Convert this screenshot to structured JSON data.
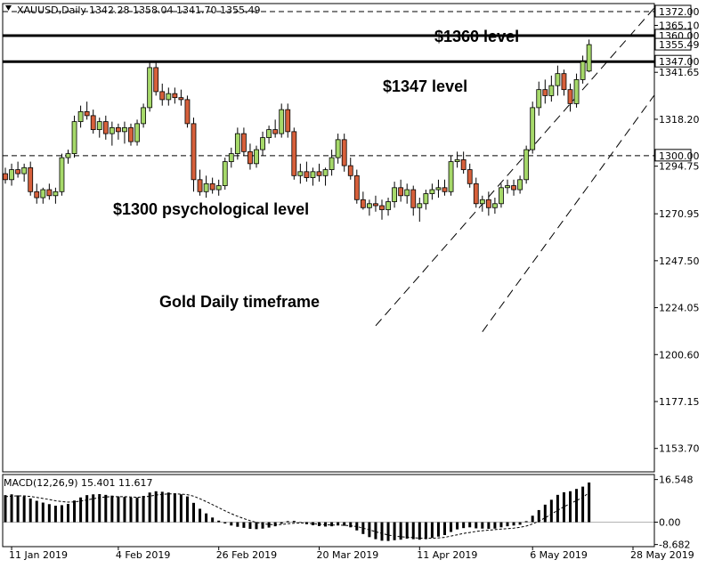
{
  "header": {
    "symbol_label": "XAUUSD,Daily",
    "ohlc_label": "1342.28 1358.04 1341.70 1355.49"
  },
  "macd_header": "MACD(12,26,9) 15.401 11.617",
  "annotations": {
    "level_1360": "$1360 level",
    "level_1347": "$1347 level",
    "level_1300": "$1300 psychological level",
    "timeframe": "Gold Daily timeframe"
  },
  "colors": {
    "bull": "#a6d96a",
    "bear": "#d7603b",
    "outline": "#000000"
  },
  "chart_data": [
    {
      "type": "candlestick",
      "title": "XAUUSD,Daily",
      "ylim": [
        1142,
        1376
      ],
      "y_ticks": [
        "1372.00",
        "1365.10",
        "1360.00",
        "1355.49",
        "1347.00",
        "1341.65",
        "1318.20",
        "1300.00",
        "1294.75",
        "1270.95",
        "1247.50",
        "1224.05",
        "1200.60",
        "1177.15",
        "1153.70"
      ],
      "highlighted_ticks": [
        "1372.00",
        "1360.00",
        "1355.49",
        "1347.00",
        "1300.00"
      ],
      "x_labels": [
        "11 Jan 2019",
        "4 Feb 2019",
        "26 Feb 2019",
        "20 Mar 2019",
        "11 Apr 2019",
        "6 May 2019",
        "28 May 2019"
      ],
      "x_label_index": [
        1,
        18,
        34,
        50,
        66,
        84,
        100
      ],
      "horizontal_levels": [
        {
          "price": 1372,
          "style": "dashed"
        },
        {
          "price": 1360,
          "style": "solid-thick"
        },
        {
          "price": 1347,
          "style": "solid-thick"
        },
        {
          "price": 1300,
          "style": "dashed"
        }
      ],
      "channel_lines": [
        {
          "from": [
            59,
            1215
          ],
          "to": [
            104,
            1376
          ]
        },
        {
          "from": [
            76,
            1212
          ],
          "to": [
            114,
            1376
          ]
        }
      ],
      "ohlc": [
        [
          1291,
          1294,
          1286,
          1288
        ],
        [
          1288,
          1296,
          1285,
          1293
        ],
        [
          1293,
          1297,
          1289,
          1291
        ],
        [
          1291,
          1296,
          1287,
          1294
        ],
        [
          1294,
          1297,
          1280,
          1282
        ],
        [
          1282,
          1286,
          1276,
          1279
        ],
        [
          1279,
          1284,
          1276,
          1283
        ],
        [
          1283,
          1286,
          1278,
          1280
        ],
        [
          1280,
          1284,
          1276,
          1282
        ],
        [
          1282,
          1301,
          1280,
          1299
        ],
        [
          1299,
          1303,
          1296,
          1301
        ],
        [
          1301,
          1320,
          1299,
          1317
        ],
        [
          1317,
          1325,
          1314,
          1322
        ],
        [
          1322,
          1327,
          1318,
          1320
        ],
        [
          1320,
          1323,
          1311,
          1313
        ],
        [
          1313,
          1319,
          1309,
          1317
        ],
        [
          1317,
          1320,
          1308,
          1311
        ],
        [
          1311,
          1317,
          1305,
          1314
        ],
        [
          1314,
          1316,
          1308,
          1312
        ],
        [
          1312,
          1317,
          1306,
          1314
        ],
        [
          1314,
          1316,
          1305,
          1307
        ],
        [
          1307,
          1318,
          1305,
          1316
        ],
        [
          1316,
          1326,
          1314,
          1324
        ],
        [
          1324,
          1347,
          1322,
          1344
        ],
        [
          1344,
          1347,
          1330,
          1332
        ],
        [
          1332,
          1336,
          1325,
          1328
        ],
        [
          1328,
          1334,
          1325,
          1331
        ],
        [
          1331,
          1334,
          1326,
          1329
        ],
        [
          1329,
          1333,
          1325,
          1328
        ],
        [
          1328,
          1330,
          1314,
          1316
        ],
        [
          1316,
          1319,
          1282,
          1288
        ],
        [
          1288,
          1293,
          1280,
          1282
        ],
        [
          1282,
          1290,
          1279,
          1286
        ],
        [
          1286,
          1289,
          1281,
          1283
        ],
        [
          1283,
          1288,
          1280,
          1285
        ],
        [
          1285,
          1299,
          1283,
          1297
        ],
        [
          1297,
          1304,
          1294,
          1301
        ],
        [
          1301,
          1314,
          1298,
          1311
        ],
        [
          1311,
          1314,
          1300,
          1302
        ],
        [
          1302,
          1306,
          1293,
          1296
        ],
        [
          1296,
          1305,
          1294,
          1303
        ],
        [
          1303,
          1312,
          1300,
          1309
        ],
        [
          1309,
          1315,
          1306,
          1313
        ],
        [
          1313,
          1318,
          1309,
          1311
        ],
        [
          1311,
          1326,
          1309,
          1323
        ],
        [
          1323,
          1326,
          1309,
          1312
        ],
        [
          1312,
          1314,
          1288,
          1290
        ],
        [
          1290,
          1296,
          1286,
          1292
        ],
        [
          1292,
          1297,
          1287,
          1289
        ],
        [
          1289,
          1294,
          1285,
          1292
        ],
        [
          1292,
          1296,
          1287,
          1290
        ],
        [
          1290,
          1294,
          1285,
          1293
        ],
        [
          1293,
          1303,
          1290,
          1299
        ],
        [
          1299,
          1311,
          1296,
          1308
        ],
        [
          1308,
          1311,
          1292,
          1295
        ],
        [
          1295,
          1299,
          1288,
          1290
        ],
        [
          1290,
          1293,
          1276,
          1278
        ],
        [
          1278,
          1282,
          1273,
          1274
        ],
        [
          1274,
          1278,
          1270,
          1276
        ],
        [
          1276,
          1280,
          1272,
          1275
        ],
        [
          1275,
          1278,
          1268,
          1273
        ],
        [
          1273,
          1279,
          1270,
          1277
        ],
        [
          1277,
          1287,
          1274,
          1284
        ],
        [
          1284,
          1288,
          1277,
          1280
        ],
        [
          1280,
          1286,
          1276,
          1283
        ],
        [
          1283,
          1285,
          1270,
          1274
        ],
        [
          1274,
          1279,
          1267,
          1276
        ],
        [
          1276,
          1283,
          1273,
          1281
        ],
        [
          1281,
          1286,
          1278,
          1283
        ],
        [
          1283,
          1288,
          1279,
          1284
        ],
        [
          1284,
          1288,
          1280,
          1282
        ],
        [
          1282,
          1300,
          1280,
          1297
        ],
        [
          1297,
          1302,
          1294,
          1298
        ],
        [
          1298,
          1302,
          1291,
          1293
        ],
        [
          1293,
          1296,
          1284,
          1286
        ],
        [
          1286,
          1289,
          1274,
          1276
        ],
        [
          1276,
          1280,
          1272,
          1278
        ],
        [
          1278,
          1282,
          1270,
          1274
        ],
        [
          1274,
          1279,
          1271,
          1276
        ],
        [
          1276,
          1286,
          1274,
          1284
        ],
        [
          1284,
          1288,
          1281,
          1285
        ],
        [
          1285,
          1288,
          1280,
          1283
        ],
        [
          1283,
          1290,
          1281,
          1288
        ],
        [
          1288,
          1305,
          1286,
          1303
        ],
        [
          1303,
          1327,
          1301,
          1324
        ],
        [
          1324,
          1337,
          1320,
          1333
        ],
        [
          1333,
          1338,
          1326,
          1330
        ],
        [
          1330,
          1340,
          1327,
          1335
        ],
        [
          1335,
          1345,
          1330,
          1341
        ],
        [
          1341,
          1343,
          1330,
          1333
        ],
        [
          1333,
          1336,
          1322,
          1326
        ],
        [
          1326,
          1341,
          1324,
          1338
        ],
        [
          1338,
          1350,
          1336,
          1347
        ],
        [
          1342.28,
          1358.04,
          1341.7,
          1355.49
        ]
      ]
    },
    {
      "type": "bar",
      "title": "MACD(12,26,9) 15.401 11.617",
      "ylim": [
        -9.5,
        18.5
      ],
      "y_ticks": [
        "16.548",
        "0.00",
        "-8.682"
      ],
      "macd": [
        10.5,
        10.8,
        10.4,
        10.0,
        9.2,
        8.3,
        7.6,
        7.0,
        6.4,
        6.6,
        7.1,
        8.4,
        9.6,
        10.5,
        10.8,
        10.9,
        10.6,
        10.3,
        10.0,
        9.8,
        9.6,
        9.6,
        10.2,
        11.5,
        12.0,
        11.8,
        11.5,
        11.2,
        10.8,
        10.0,
        7.5,
        5.2,
        3.4,
        1.8,
        0.6,
        -0.5,
        -1.3,
        -1.8,
        -2.2,
        -2.6,
        -2.7,
        -2.5,
        -2.1,
        -1.6,
        -0.6,
        0.4,
        0.5,
        -0.2,
        -0.8,
        -1.2,
        -1.5,
        -1.7,
        -1.6,
        -1.2,
        -1.4,
        -2.0,
        -3.2,
        -4.6,
        -5.8,
        -6.6,
        -7.2,
        -7.3,
        -7.0,
        -6.8,
        -6.4,
        -6.6,
        -6.8,
        -6.6,
        -6.1,
        -5.6,
        -5.0,
        -3.8,
        -2.8,
        -2.3,
        -2.0,
        -2.4,
        -2.5,
        -2.6,
        -2.5,
        -2.0,
        -1.6,
        -1.3,
        -1.0,
        0.4,
        2.5,
        4.7,
        6.8,
        8.7,
        10.6,
        11.6,
        12.0,
        12.9,
        13.8,
        15.4
      ],
      "signal": [
        9.9,
        10.1,
        10.2,
        10.2,
        10.0,
        9.6,
        9.2,
        8.8,
        8.3,
        8.0,
        7.8,
        7.9,
        8.2,
        8.6,
        9.1,
        9.5,
        9.8,
        9.9,
        9.9,
        9.9,
        9.8,
        9.7,
        9.8,
        10.1,
        10.5,
        10.8,
        11.0,
        11.0,
        10.9,
        10.7,
        10.1,
        9.1,
        8.0,
        6.8,
        5.6,
        4.4,
        3.3,
        2.3,
        1.4,
        0.6,
        -0.1,
        -0.6,
        -0.9,
        -1.0,
        -0.9,
        -0.6,
        -0.4,
        -0.3,
        -0.4,
        -0.6,
        -0.8,
        -1.0,
        -1.1,
        -1.1,
        -1.2,
        -1.4,
        -1.7,
        -2.3,
        -3.0,
        -3.7,
        -4.4,
        -5.0,
        -5.4,
        -5.7,
        -5.8,
        -6.0,
        -6.2,
        -6.2,
        -6.2,
        -6.1,
        -5.9,
        -5.4,
        -4.9,
        -4.4,
        -4.0,
        -3.6,
        -3.3,
        -3.1,
        -2.9,
        -2.7,
        -2.5,
        -2.3,
        -2.0,
        -1.5,
        -0.7,
        0.4,
        1.7,
        3.1,
        4.6,
        6.0,
        7.2,
        8.4,
        9.5,
        11.6
      ]
    }
  ]
}
